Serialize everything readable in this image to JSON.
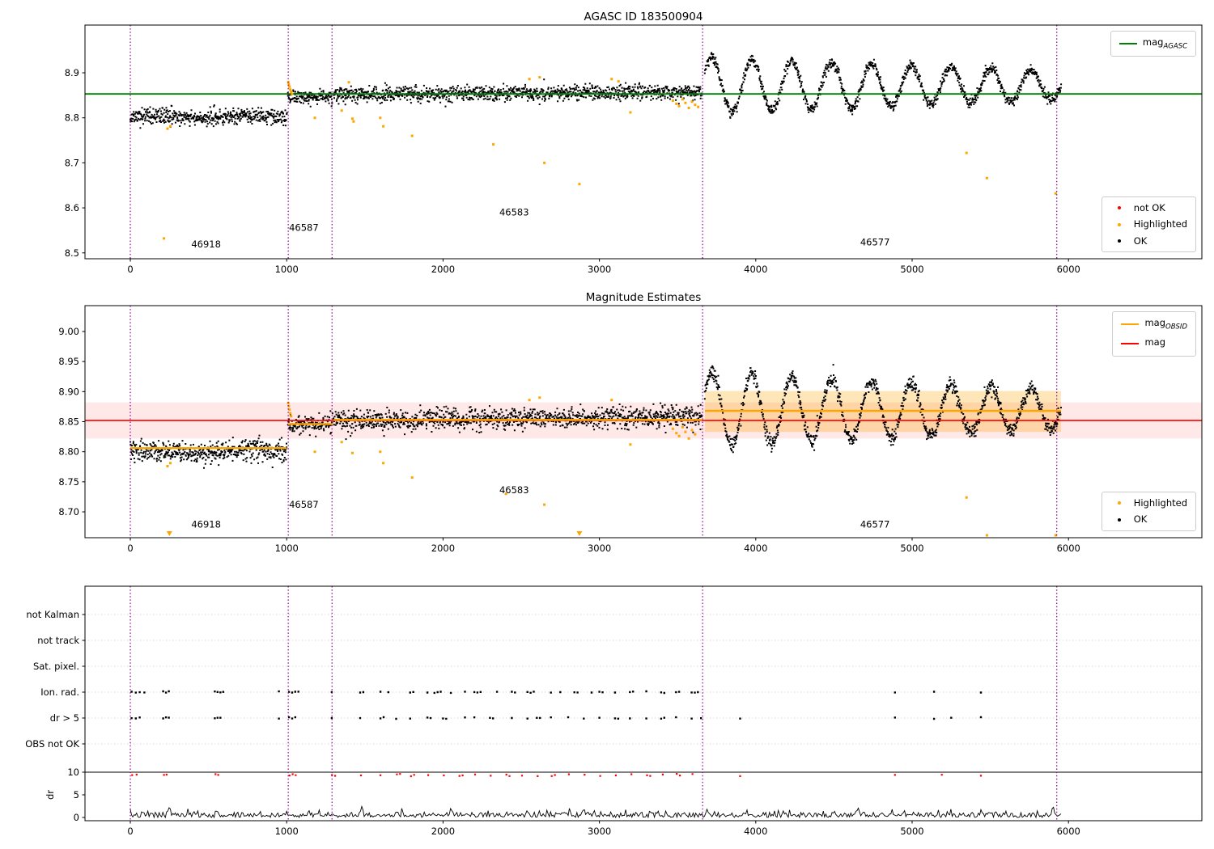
{
  "figure": {
    "bg": "#ffffff"
  },
  "colors": {
    "ok": "#000000",
    "highlighted": "#ffa500",
    "not_ok": "#ff0000",
    "mag_agasc": "#008000",
    "mag_obsid": "#ffa500",
    "mag": "#ff0000",
    "vline": "#8b008b",
    "band_pink": "rgba(255,0,0,0.09)",
    "band_orange": "rgba(255,165,0,0.28)",
    "grid_dotted": "#cccccc",
    "spine": "#000000"
  },
  "chart_data": [
    {
      "type": "scatter",
      "title": "AGASC ID 183500904",
      "xlim": [
        -290,
        6853
      ],
      "ylim": [
        8.487,
        9.006
      ],
      "xticks": [
        0,
        1000,
        2000,
        3000,
        4000,
        5000,
        6000
      ],
      "yticks": [
        8.5,
        8.6,
        8.7,
        8.8,
        8.9
      ],
      "ytick_decimals": 1,
      "vlines": [
        0,
        1010,
        1290,
        3660,
        5925
      ],
      "lines": [
        {
          "x0": -290,
          "x1": 6853,
          "y": 8.853,
          "color_key": "mag_agasc",
          "width": 1.8,
          "name": "mag_AGASC"
        }
      ],
      "bands": [],
      "segments": [
        {
          "obsid": 46918,
          "x0": 0,
          "x1": 1000,
          "base": 8.801,
          "sigma": 0.0085,
          "wobble_amp": 0.003,
          "wobble_period": 620
        },
        {
          "obsid": 46587,
          "x0": 1008,
          "x1": 1295,
          "base": 8.8465,
          "sigma": 0.007
        },
        {
          "obsid": 46583,
          "x0": 1300,
          "x1": 3655,
          "base": 8.851,
          "slope": 0.003,
          "sigma": 0.0085
        },
        {
          "obsid": 46577,
          "x0": 3675,
          "x1": 5952,
          "base": 8.872,
          "sigma": 0.006,
          "osc_amp0": 0.062,
          "osc_amp1": 0.032,
          "osc_period": 255,
          "osc_phase": 45
        }
      ],
      "highlighted": [
        [
          215,
          8.532
        ],
        [
          238,
          8.776
        ],
        [
          256,
          8.781
        ],
        [
          1010,
          8.879
        ],
        [
          1014,
          8.874
        ],
        [
          1018,
          8.869
        ],
        [
          1023,
          8.863
        ],
        [
          1028,
          8.858
        ],
        [
          1034,
          8.853
        ],
        [
          1180,
          8.8
        ],
        [
          1352,
          8.816
        ],
        [
          1398,
          8.879
        ],
        [
          1420,
          8.798
        ],
        [
          1428,
          8.792
        ],
        [
          1598,
          8.8
        ],
        [
          1618,
          8.781
        ],
        [
          1802,
          8.76
        ],
        [
          2322,
          8.741
        ],
        [
          2552,
          8.886
        ],
        [
          2618,
          8.89
        ],
        [
          2648,
          8.7
        ],
        [
          2872,
          8.653
        ],
        [
          3078,
          8.886
        ],
        [
          3122,
          8.881
        ],
        [
          3198,
          8.812
        ],
        [
          3470,
          8.838
        ],
        [
          3492,
          8.831
        ],
        [
          3510,
          8.826
        ],
        [
          3532,
          8.841
        ],
        [
          3550,
          8.833
        ],
        [
          3572,
          8.822
        ],
        [
          3592,
          8.836
        ],
        [
          3612,
          8.829
        ],
        [
          3632,
          8.824
        ],
        [
          5348,
          8.722
        ],
        [
          5478,
          8.666
        ],
        [
          5918,
          8.632
        ]
      ],
      "clipped_low": [],
      "annotations": [
        {
          "text": "46918",
          "x": 390,
          "y": 8.512
        },
        {
          "text": "46587",
          "x": 1015,
          "y": 8.549
        },
        {
          "text": "46583",
          "x": 2360,
          "y": 8.583
        },
        {
          "text": "46577",
          "x": 4668,
          "y": 8.517
        }
      ],
      "legends": [
        {
          "items": [
            {
              "marker": "line",
              "color_key": "mag_agasc",
              "label": "mag",
              "sub": "AGASC"
            }
          ]
        },
        {
          "items": [
            {
              "marker": "dot",
              "color_key": "not_ok",
              "label": "not OK"
            },
            {
              "marker": "dot",
              "color_key": "highlighted",
              "label": "Highlighted"
            },
            {
              "marker": "dot",
              "color_key": "ok",
              "label": "OK"
            }
          ]
        }
      ]
    },
    {
      "type": "scatter",
      "title": "Magnitude Estimates",
      "xlim": [
        -290,
        6853
      ],
      "ylim": [
        8.657,
        9.043
      ],
      "xticks": [
        0,
        1000,
        2000,
        3000,
        4000,
        5000,
        6000
      ],
      "yticks": [
        9.0,
        8.95,
        8.9,
        8.85,
        8.8,
        8.75,
        8.7
      ],
      "ytick_decimals": 2,
      "vlines": [
        0,
        1010,
        1290,
        3660,
        5925
      ],
      "bands": [
        {
          "x0": -290,
          "x1": 6853,
          "y0": 8.822,
          "y1": 8.882,
          "color_key": "band_pink"
        },
        {
          "x0": 3675,
          "x1": 5952,
          "y0": 8.833,
          "y1": 8.901,
          "color_key": "band_orange"
        }
      ],
      "lines": [
        {
          "x0": -290,
          "x1": 6853,
          "y": 8.852,
          "color_key": "mag",
          "width": 1.6,
          "name": "mag"
        },
        {
          "x0": 0,
          "x1": 1000,
          "y": 8.806,
          "color_key": "mag_obsid",
          "width": 2.4,
          "name": "mag_OBSID"
        },
        {
          "x0": 1008,
          "x1": 1295,
          "y": 8.846,
          "color_key": "mag_obsid",
          "width": 2.4
        },
        {
          "x0": 1300,
          "x1": 3655,
          "y": 8.853,
          "color_key": "mag_obsid",
          "width": 2.4
        },
        {
          "x0": 3675,
          "x1": 5952,
          "y": 8.868,
          "color_key": "mag_obsid",
          "width": 2.4
        }
      ],
      "segments": [
        {
          "obsid": 46918,
          "x0": 0,
          "x1": 1000,
          "base": 8.8,
          "sigma": 0.0085,
          "wobble_amp": 0.003,
          "wobble_period": 620
        },
        {
          "obsid": 46587,
          "x0": 1008,
          "x1": 1295,
          "base": 8.846,
          "sigma": 0.007
        },
        {
          "obsid": 46583,
          "x0": 1300,
          "x1": 3655,
          "base": 8.852,
          "slope": 0.0025,
          "sigma": 0.0085
        },
        {
          "obsid": 46577,
          "x0": 3675,
          "x1": 5952,
          "base": 8.87,
          "sigma": 0.006,
          "osc_amp0": 0.062,
          "osc_amp1": 0.032,
          "osc_period": 255,
          "osc_phase": 45
        }
      ],
      "highlighted": [
        [
          238,
          8.776
        ],
        [
          256,
          8.781
        ],
        [
          1010,
          8.881
        ],
        [
          1014,
          8.876
        ],
        [
          1018,
          8.87
        ],
        [
          1023,
          8.864
        ],
        [
          1028,
          8.859
        ],
        [
          1180,
          8.8
        ],
        [
          1352,
          8.816
        ],
        [
          1420,
          8.798
        ],
        [
          1598,
          8.8
        ],
        [
          1618,
          8.781
        ],
        [
          1802,
          8.757
        ],
        [
          2402,
          8.73
        ],
        [
          2552,
          8.886
        ],
        [
          2618,
          8.89
        ],
        [
          2648,
          8.712
        ],
        [
          3078,
          8.886
        ],
        [
          3198,
          8.812
        ],
        [
          3470,
          8.838
        ],
        [
          3492,
          8.831
        ],
        [
          3510,
          8.826
        ],
        [
          3532,
          8.841
        ],
        [
          3550,
          8.833
        ],
        [
          3572,
          8.822
        ],
        [
          3592,
          8.836
        ],
        [
          3612,
          8.829
        ],
        [
          5348,
          8.724
        ],
        [
          5478,
          8.661
        ],
        [
          5918,
          8.661
        ]
      ],
      "clipped_low": [
        250,
        2872
      ],
      "annotations": [
        {
          "text": "46918",
          "x": 390,
          "y": 8.674
        },
        {
          "text": "46587",
          "x": 1015,
          "y": 8.707
        },
        {
          "text": "46583",
          "x": 2360,
          "y": 8.731
        },
        {
          "text": "46577",
          "x": 4668,
          "y": 8.674
        }
      ],
      "legends": [
        {
          "items": [
            {
              "marker": "line",
              "color_key": "mag_obsid",
              "label": "mag",
              "sub": "OBSID"
            },
            {
              "marker": "line",
              "color_key": "mag",
              "label": "mag",
              "sub": ""
            }
          ]
        },
        {
          "items": [
            {
              "marker": "dot",
              "color_key": "highlighted",
              "label": "Highlighted"
            },
            {
              "marker": "dot",
              "color_key": "ok",
              "label": "OK"
            }
          ]
        }
      ]
    },
    {
      "type": "flags",
      "xlim": [
        -290,
        6853
      ],
      "xticks": [
        0,
        1000,
        2000,
        3000,
        4000,
        5000,
        6000
      ],
      "rows": [
        "not Kalman",
        "not track",
        "Sat. pixel.",
        "Ion. rad.",
        "dr > 5",
        "OBS not OK"
      ],
      "dr_axis": {
        "label": "dr",
        "ticks": [
          10,
          5,
          0
        ],
        "clip_line": 10
      },
      "vlines": [
        0,
        1010,
        1290,
        3660,
        5925
      ],
      "ion_rad_x": [
        8,
        35,
        60,
        90,
        210,
        228,
        246,
        540,
        558,
        576,
        594,
        950,
        1015,
        1035,
        1055,
        1075,
        1288,
        1470,
        1490,
        1600,
        1650,
        1790,
        1810,
        1900,
        1945,
        1965,
        1985,
        2050,
        2140,
        2200,
        2220,
        2240,
        2345,
        2440,
        2460,
        2540,
        2560,
        2580,
        2690,
        2750,
        2840,
        2860,
        2950,
        3000,
        3020,
        3100,
        3195,
        3215,
        3300,
        3395,
        3415,
        3490,
        3510,
        3590,
        3610,
        3630,
        4890,
        5140,
        5440
      ],
      "dr5_x": [
        8,
        35,
        60,
        210,
        228,
        246,
        540,
        558,
        576,
        950,
        1015,
        1035,
        1055,
        1288,
        1470,
        1600,
        1620,
        1700,
        1790,
        1900,
        1920,
        2000,
        2020,
        2140,
        2200,
        2300,
        2320,
        2440,
        2540,
        2600,
        2620,
        2690,
        2800,
        2900,
        3000,
        3100,
        3120,
        3195,
        3300,
        3395,
        3415,
        3490,
        3590,
        3650,
        3900,
        4890,
        5140,
        5250,
        5440
      ],
      "dr_clip_x": [
        12,
        40,
        215,
        232,
        545,
        562,
        1018,
        1038,
        1058,
        1290,
        1310,
        1475,
        1600,
        1705,
        1725,
        1795,
        1815,
        1905,
        2005,
        2105,
        2125,
        2205,
        2305,
        2405,
        2425,
        2505,
        2605,
        2695,
        2715,
        2805,
        2905,
        3005,
        3105,
        3205,
        3305,
        3325,
        3405,
        3495,
        3515,
        3595,
        3900,
        4890,
        5190,
        5440
      ],
      "dr_trace": {
        "x0": 0,
        "x1": 5952,
        "step": 8,
        "mean": 0.55,
        "sigma": 0.45,
        "spikes": [
          [
            250,
            1.6
          ],
          [
            1480,
            1.8
          ],
          [
            2050,
            1.5
          ],
          [
            2900,
            1.9
          ],
          [
            3690,
            1.6
          ],
          [
            4650,
            1.4
          ],
          [
            5900,
            2.6
          ]
        ]
      }
    }
  ]
}
